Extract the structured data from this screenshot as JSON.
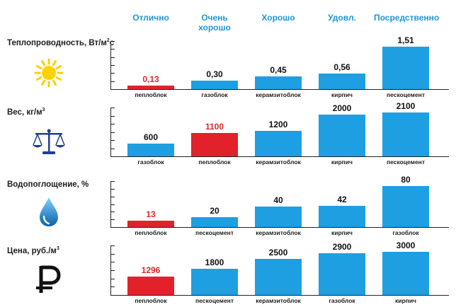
{
  "columns": [
    "Отлично",
    "Очень хорошо",
    "Хорошо",
    "Удовл.",
    "Посредственно"
  ],
  "colors": {
    "bar": "#1e9fe2",
    "highlight": "#e1222b",
    "header": "#1e97d8"
  },
  "chart_data": [
    {
      "type": "bar",
      "title": "Теплопроводность, Вт/м²с",
      "label_main": "Теплопроводность, Вт/м",
      "label_sup": "2",
      "label_tail": "с",
      "icon": "sun-icon",
      "categories": [
        "пеплоблок",
        "газоблок",
        "керамзитоблок",
        "кирпич",
        "пескоцемент"
      ],
      "values": [
        0.13,
        0.3,
        0.45,
        0.56,
        1.51
      ],
      "value_labels": [
        "0,13",
        "0,30",
        "0,45",
        "0,56",
        "1,51"
      ],
      "highlight_index": 0,
      "ylim": [
        0,
        1.7
      ]
    },
    {
      "type": "bar",
      "title": "Вес, кг/м³",
      "label_main": "Вес, кг/м",
      "label_sup": "3",
      "label_tail": "",
      "icon": "scales-icon",
      "categories": [
        "газоблок",
        "пеплоблок",
        "керамзитоблок",
        "кирпич",
        "пескоцемент"
      ],
      "values": [
        600,
        1100,
        1200,
        2000,
        2100
      ],
      "value_labels": [
        "600",
        "1100",
        "1200",
        "2000",
        "2100"
      ],
      "highlight_index": 1,
      "ylim": [
        0,
        2330
      ]
    },
    {
      "type": "bar",
      "title": "Водопоглощение, %",
      "label_main": "Водопоглощение, %",
      "label_sup": "",
      "label_tail": "",
      "icon": "water-drop-icon",
      "categories": [
        "пеплоблок",
        "пескоцемент",
        "керамзитоблок",
        "кирпич",
        "газоблок"
      ],
      "values": [
        13,
        20,
        40,
        42,
        80
      ],
      "value_labels": [
        "13",
        "20",
        "40",
        "42",
        "80"
      ],
      "highlight_index": 0,
      "ylim": [
        0,
        90
      ]
    },
    {
      "type": "bar",
      "title": "Цена, руб./м³",
      "label_main": "Цена, руб./м",
      "label_sup": "3",
      "label_tail": "",
      "icon": "ruble-icon",
      "categories": [
        "пеплоблок",
        "пескоцемент",
        "керамзитоблок",
        "газоблок",
        "кирпич"
      ],
      "values": [
        1296,
        1800,
        2500,
        2900,
        3000
      ],
      "value_labels": [
        "1296",
        "1800",
        "2500",
        "2900",
        "3000"
      ],
      "highlight_index": 0,
      "ylim": [
        0,
        3430
      ]
    }
  ]
}
